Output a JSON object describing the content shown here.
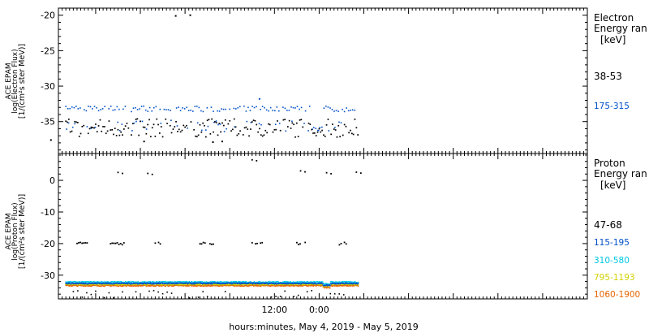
{
  "chart_data": [
    {
      "type": "scatter",
      "ylabel": [
        "ACE EPAM",
        "log(Electron Flux)",
        "[1/(cm²s ster MeV)]"
      ],
      "ylim": [
        -39.5,
        -19
      ],
      "yticks": [
        -35,
        -30,
        -25,
        -20
      ],
      "legend_title": [
        "Electron",
        "Energy ran",
        "[keV]"
      ],
      "legend_placement": "right",
      "series": [
        {
          "name": "38-53",
          "color": "#000000",
          "band": [
            -37.2,
            -34.6
          ],
          "gap_band": [
            -37.0,
            -35.8
          ],
          "outliers": [
            [
              -34.6,
              -20.0
            ],
            [
              -38.5,
              -20.1
            ],
            [
              -26.0,
              -37.8
            ],
            [
              -28.5,
              -37.9
            ],
            [
              -47.0,
              -37.8
            ],
            [
              -72.0,
              -37.6
            ]
          ]
        },
        {
          "name": "175-315",
          "color": "#0050c8",
          "band": [
            -33.6,
            -32.8
          ],
          "gap_band": [
            -36.3,
            -35.3
          ],
          "outliers": [
            [
              -16.0,
              -31.8
            ]
          ]
        }
      ]
    },
    {
      "type": "scatter",
      "xlabel": "hours:minutes, May  4, 2019 - May  5, 2019",
      "xlim": [
        -70.0,
        72.0
      ],
      "xticks": [
        {
          "x": -12,
          "label": "12:00"
        },
        {
          "x": 0,
          "label": "0:00"
        }
      ],
      "ylabel": [
        "ACE EPAM",
        "log(Proton Flux)",
        "[1/(cm²s ster MeV)]"
      ],
      "ylim": [
        -37.5,
        8.5
      ],
      "yticks": [
        -30,
        -20,
        -10,
        0
      ],
      "legend_title": [
        "Proton",
        "Energy ran",
        "[keV]"
      ],
      "legend_placement": "right",
      "series": [
        {
          "name": "47-68",
          "color": "#000000",
          "level": -20,
          "clusters": [
            [
              -65.0,
              -62.0
            ],
            [
              -56.0,
              -52.0
            ],
            [
              -44.0,
              -41.0
            ],
            [
              -32.0,
              -28.0
            ],
            [
              -18.0,
              -15.0
            ],
            [
              -6.0,
              -3.0
            ],
            [
              5.0,
              8.0
            ]
          ],
          "high_points": [
            [
              -54.0,
              2.5
            ],
            [
              -46.0,
              2.2
            ],
            [
              -5.0,
              3.0
            ],
            [
              2.0,
              2.4
            ],
            [
              10.0,
              2.6
            ],
            [
              -18.0,
              6.5
            ]
          ],
          "low_band": [
            -37.2,
            -34.8
          ]
        },
        {
          "name": "115-195",
          "color": "#0050c8",
          "level": -32.6
        },
        {
          "name": "310-580",
          "color": "#00c8e6",
          "level": -32.2
        },
        {
          "name": "795-1193",
          "color": "#d2d200",
          "level": -32.9
        },
        {
          "name": "1060-1900",
          "color": "#e66400",
          "level": -33.3
        }
      ]
    }
  ]
}
